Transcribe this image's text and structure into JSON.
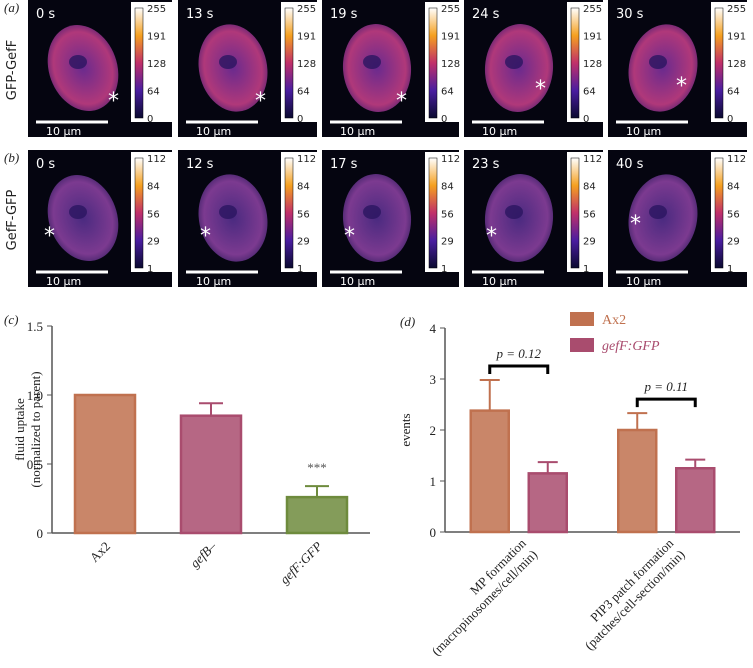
{
  "panels": {
    "a": {
      "label": "(a)",
      "construct": "GFP-GefF",
      "times": [
        "0 s",
        "13 s",
        "19 s",
        "24 s",
        "30 s"
      ],
      "colorbar_ticks": [
        255,
        191,
        128,
        64,
        0
      ],
      "scale_bar": "10 µm",
      "marker": "*"
    },
    "b": {
      "label": "(b)",
      "construct": "GefF-GFP",
      "times": [
        "0 s",
        "12 s",
        "17 s",
        "23 s",
        "40 s"
      ],
      "colorbar_ticks": [
        112,
        84,
        56,
        29,
        1
      ],
      "scale_bar": "10 µm",
      "marker": "*"
    }
  },
  "chart_data": [
    {
      "type": "bar",
      "panel_label": "(c)",
      "y_label": [
        "fluid uptake",
        "(normalized to parent)"
      ],
      "categories": [
        "Ax2",
        "gefB–",
        "gefF:GFP"
      ],
      "values": [
        1.0,
        0.85,
        0.26
      ],
      "errors": [
        0,
        0.09,
        0.08
      ],
      "colors": [
        "#c0714f",
        "#a94c6e",
        "#6e8b3d"
      ],
      "annotations": [
        "***"
      ],
      "ylim": [
        0,
        1.5
      ],
      "yticks": [
        0,
        0.5,
        {
          "value": 1,
          "label": "1.0"
        },
        1.5
      ]
    },
    {
      "type": "grouped_bar",
      "panel_label": "(d)",
      "y_label": [
        "events"
      ],
      "categories": [
        [
          "MP formation",
          "(macropinosomes/cell/min)"
        ],
        [
          "PIP3 patch formation",
          "(patches/cell-section/min)"
        ]
      ],
      "series": [
        {
          "name": "Ax2",
          "color": "#c0714f",
          "values": [
            2.38,
            2.0
          ],
          "errors": [
            0.6,
            0.33
          ]
        },
        {
          "name": "gefF:GFP",
          "color": "#a94c6e",
          "values": [
            1.15,
            1.25
          ],
          "errors": [
            0.22,
            0.17
          ]
        }
      ],
      "annotations": [
        "p = 0.12",
        "p = 0.11"
      ],
      "ylim": [
        0,
        4
      ],
      "yticks": [
        0,
        1,
        2,
        3,
        4
      ]
    }
  ]
}
